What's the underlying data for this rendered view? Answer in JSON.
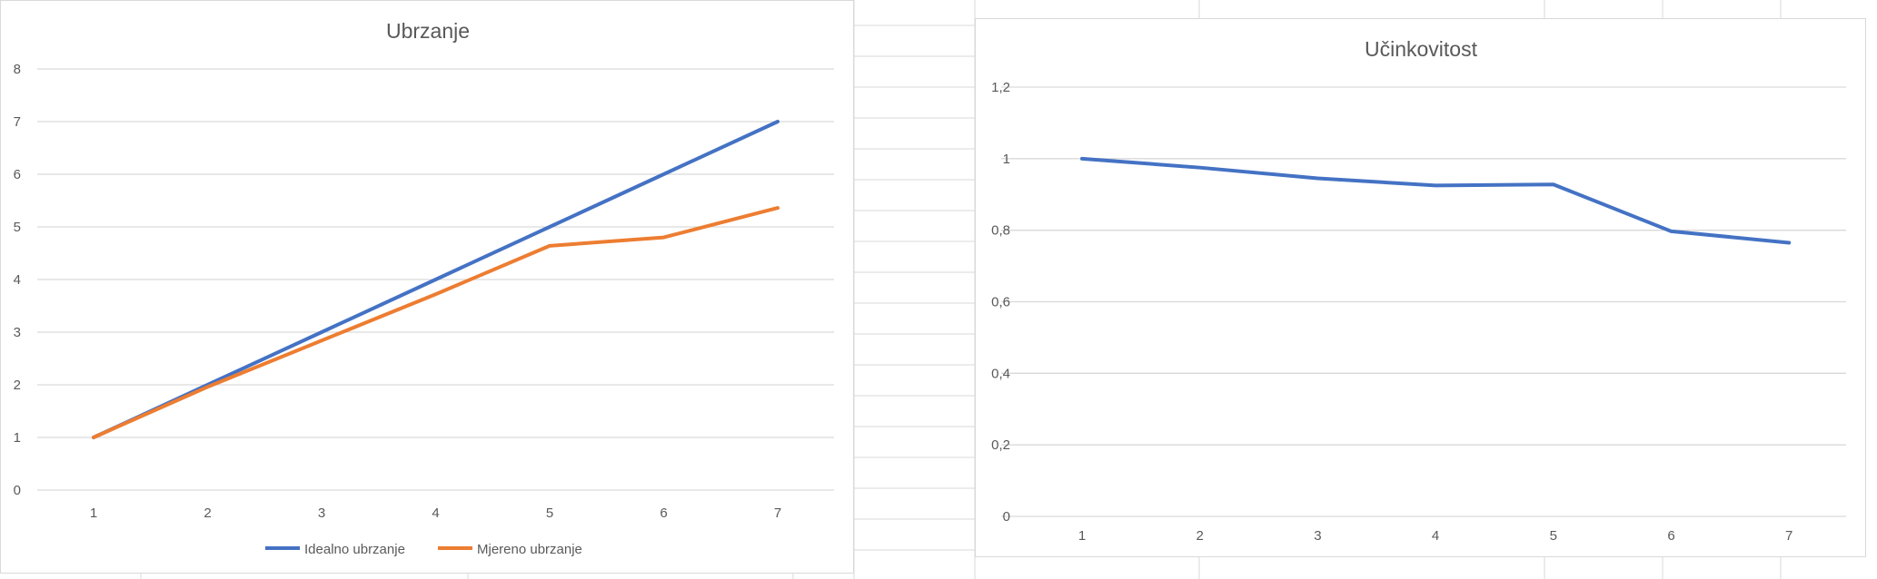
{
  "colors": {
    "series_blue": "#4472c4",
    "series_orange": "#ed7d31",
    "grid": "#d9d9d9",
    "text": "#595959",
    "sheet_grid": "#d9d9d9"
  },
  "chart_data": [
    {
      "type": "line",
      "title": "Ubrzanje",
      "categories": [
        "1",
        "2",
        "3",
        "4",
        "5",
        "6",
        "7"
      ],
      "series": [
        {
          "name": "Idealno ubrzanje",
          "color": "#4472c4",
          "values": [
            1,
            2,
            3,
            4,
            5,
            6,
            7
          ]
        },
        {
          "name": "Mjereno ubrzanje",
          "color": "#ed7d31",
          "values": [
            1,
            1.96,
            2.84,
            3.72,
            4.64,
            4.8,
            5.36
          ]
        }
      ],
      "yticks": [
        "0",
        "1",
        "2",
        "3",
        "4",
        "5",
        "6",
        "7",
        "8"
      ],
      "ylim": [
        0,
        8
      ],
      "grid": true,
      "legend": "bottom"
    },
    {
      "type": "line",
      "title": "Učinkovitost",
      "categories": [
        "1",
        "2",
        "3",
        "4",
        "5",
        "6",
        "7"
      ],
      "series": [
        {
          "color": "#4472c4",
          "values": [
            1,
            0.975,
            0.945,
            0.925,
            0.928,
            0.797,
            0.765
          ]
        }
      ],
      "yticks": [
        "0",
        "0,2",
        "0,4",
        "0,6",
        "0,8",
        "1",
        "1,2"
      ],
      "ylim": [
        0,
        1.2
      ],
      "grid": true,
      "legend": "none"
    }
  ]
}
